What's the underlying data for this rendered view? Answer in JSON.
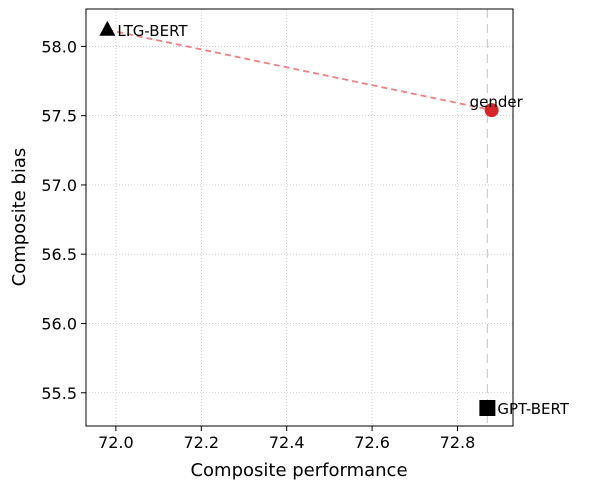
{
  "chart_data": {
    "type": "scatter",
    "title": "",
    "xlabel": "Composite performance",
    "ylabel": "Composite bias",
    "xlim": [
      71.93,
      72.93
    ],
    "ylim": [
      55.26,
      58.27
    ],
    "xticks": [
      "72.0",
      "72.2",
      "72.4",
      "72.6",
      "72.8"
    ],
    "yticks": [
      "55.5",
      "56.0",
      "56.5",
      "57.0",
      "57.5",
      "58.0"
    ],
    "grid": true,
    "points": [
      {
        "label": "LTG-BERT",
        "x": 71.98,
        "y": 58.12,
        "marker": "triangle",
        "color": "#000000"
      },
      {
        "label": "gender",
        "x": 72.88,
        "y": 57.54,
        "marker": "circle",
        "color": "#d62728"
      },
      {
        "label": "GPT-BERT",
        "x": 72.87,
        "y": 55.39,
        "marker": "square",
        "color": "#000000"
      }
    ],
    "trend_line": {
      "from": "LTG-BERT",
      "to": "gender",
      "style": "dashed",
      "color": "#f08080"
    },
    "reference_vline": {
      "x": 72.87,
      "style": "dashed",
      "color": "#cccccc"
    }
  }
}
